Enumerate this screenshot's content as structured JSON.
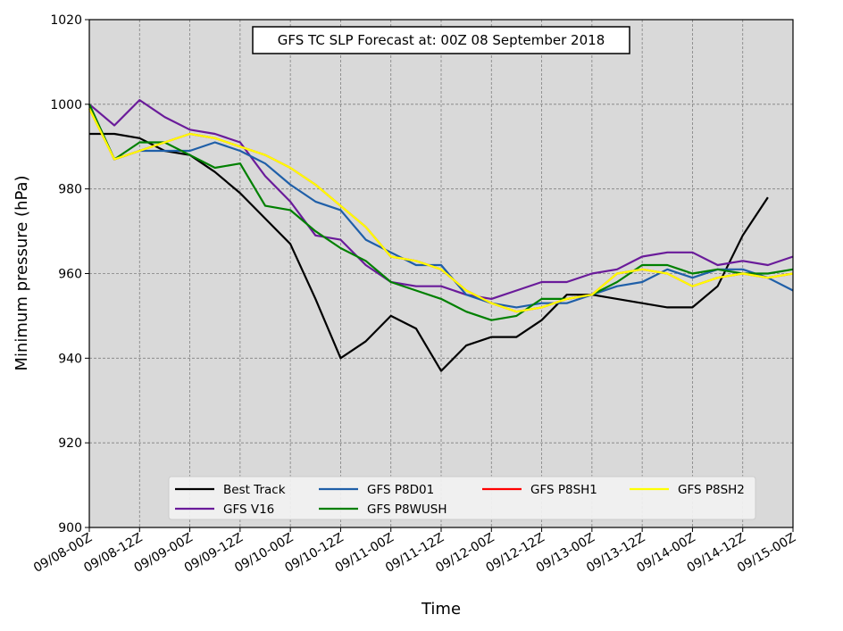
{
  "chart_data": {
    "type": "line",
    "title": "GFS TC SLP Forecast at: 00Z 08 September 2018",
    "xlabel": "Time",
    "ylabel": "Minimum pressure (hPa)",
    "ylim": [
      900,
      1020
    ],
    "yticks": [
      900,
      920,
      940,
      960,
      980,
      1000,
      1020
    ],
    "xticks": [
      "09/08-00Z",
      "09/08-12Z",
      "09/09-00Z",
      "09/09-12Z",
      "09/10-00Z",
      "09/10-12Z",
      "09/11-00Z",
      "09/11-12Z",
      "09/12-00Z",
      "09/12-12Z",
      "09/13-00Z",
      "09/13-12Z",
      "09/14-00Z",
      "09/14-12Z",
      "09/15-00Z"
    ],
    "xlim_hours": [
      0,
      168
    ],
    "x_hours": [
      0,
      6,
      12,
      18,
      24,
      30,
      36,
      42,
      48,
      54,
      60,
      66,
      72,
      78,
      84,
      90,
      96,
      102,
      108,
      114,
      120,
      126,
      132,
      138,
      144,
      150,
      156,
      162,
      168
    ],
    "grid": true,
    "legend_position": "lower-center",
    "series": [
      {
        "name": "Best Track",
        "color": "#000000",
        "values": [
          993,
          993,
          992,
          989,
          988,
          984,
          979,
          973,
          967,
          954,
          940,
          944,
          950,
          947,
          937,
          943,
          945,
          945,
          949,
          955,
          955,
          954,
          953,
          952,
          952,
          957,
          969,
          978,
          null
        ]
      },
      {
        "name": "GFS V16",
        "color": "#6a1b9a",
        "values": [
          1000,
          995,
          1001,
          997,
          994,
          993,
          991,
          983,
          977,
          969,
          968,
          962,
          958,
          957,
          957,
          955,
          954,
          956,
          958,
          958,
          960,
          961,
          964,
          965,
          965,
          962,
          963,
          962,
          964
        ]
      },
      {
        "name": "GFS P8D01",
        "color": "#1f5fa8",
        "values": [
          1000,
          987,
          989,
          989,
          989,
          991,
          989,
          986,
          981,
          977,
          975,
          968,
          965,
          962,
          962,
          955,
          953,
          952,
          953,
          953,
          955,
          957,
          958,
          961,
          959,
          961,
          961,
          959,
          956
        ]
      },
      {
        "name": "GFS P8WUSH",
        "color": "#008000",
        "values": [
          1000,
          987,
          991,
          991,
          988,
          985,
          986,
          976,
          975,
          970,
          966,
          963,
          958,
          956,
          954,
          951,
          949,
          950,
          954,
          954,
          955,
          958,
          962,
          962,
          960,
          961,
          960,
          960,
          961
        ]
      },
      {
        "name": "GFS P8SH1",
        "color": "#ff0000",
        "values": [
          999,
          987,
          989,
          991,
          993,
          992,
          990,
          988,
          985,
          981,
          976,
          971,
          964,
          963,
          961,
          956,
          953,
          951,
          952,
          954,
          955,
          960,
          961,
          960,
          957,
          959,
          960,
          959,
          960
        ]
      },
      {
        "name": "GFS P8SH2",
        "color": "#ffff00",
        "values": [
          999,
          987,
          989,
          991,
          993,
          992,
          990,
          988,
          985,
          981,
          976,
          971,
          964,
          963,
          961,
          956,
          953,
          951,
          952,
          954,
          955,
          960,
          961,
          960,
          957,
          959,
          960,
          959,
          960
        ]
      }
    ]
  }
}
